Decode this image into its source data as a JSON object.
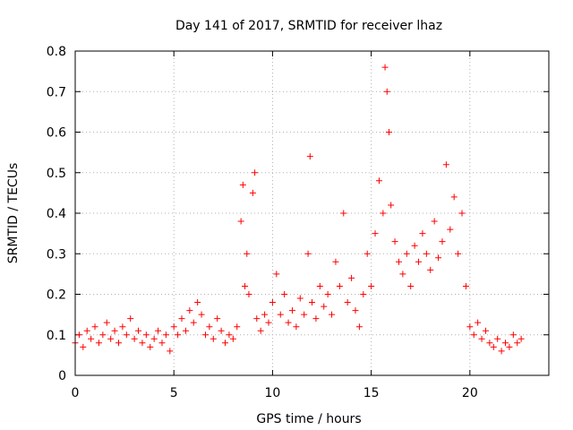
{
  "chart_data": {
    "type": "scatter",
    "title": "Day 141 of 2017, SRMTID for receiver lhaz",
    "xlabel": "GPS time / hours",
    "ylabel": "SRMTID / TECUs",
    "xlim": [
      0,
      24
    ],
    "ylim": [
      0,
      0.8
    ],
    "x_ticks": [
      "0",
      "5",
      "10",
      "15",
      "20"
    ],
    "y_ticks": [
      "0",
      "0.1",
      "0.2",
      "0.3",
      "0.4",
      "0.5",
      "0.6",
      "0.7",
      "0.8"
    ],
    "grid": true,
    "marker": "plus",
    "color": "#ff0000",
    "series": [
      {
        "name": "SRMTID",
        "points": [
          [
            0.0,
            0.08
          ],
          [
            0.2,
            0.1
          ],
          [
            0.4,
            0.07
          ],
          [
            0.6,
            0.11
          ],
          [
            0.8,
            0.09
          ],
          [
            1.0,
            0.12
          ],
          [
            1.2,
            0.08
          ],
          [
            1.4,
            0.1
          ],
          [
            1.6,
            0.13
          ],
          [
            1.8,
            0.09
          ],
          [
            2.0,
            0.11
          ],
          [
            2.2,
            0.08
          ],
          [
            2.4,
            0.12
          ],
          [
            2.6,
            0.1
          ],
          [
            2.8,
            0.14
          ],
          [
            3.0,
            0.09
          ],
          [
            3.2,
            0.11
          ],
          [
            3.4,
            0.08
          ],
          [
            3.6,
            0.1
          ],
          [
            3.8,
            0.07
          ],
          [
            4.0,
            0.09
          ],
          [
            4.2,
            0.11
          ],
          [
            4.4,
            0.08
          ],
          [
            4.6,
            0.1
          ],
          [
            4.8,
            0.06
          ],
          [
            5.0,
            0.12
          ],
          [
            5.2,
            0.1
          ],
          [
            5.4,
            0.14
          ],
          [
            5.6,
            0.11
          ],
          [
            5.8,
            0.16
          ],
          [
            6.0,
            0.13
          ],
          [
            6.2,
            0.18
          ],
          [
            6.4,
            0.15
          ],
          [
            6.6,
            0.1
          ],
          [
            6.8,
            0.12
          ],
          [
            7.0,
            0.09
          ],
          [
            7.2,
            0.14
          ],
          [
            7.4,
            0.11
          ],
          [
            7.6,
            0.08
          ],
          [
            7.8,
            0.1
          ],
          [
            8.0,
            0.09
          ],
          [
            8.2,
            0.12
          ],
          [
            8.4,
            0.38
          ],
          [
            8.5,
            0.47
          ],
          [
            8.6,
            0.22
          ],
          [
            8.7,
            0.3
          ],
          [
            8.8,
            0.2
          ],
          [
            9.0,
            0.45
          ],
          [
            9.1,
            0.5
          ],
          [
            9.2,
            0.14
          ],
          [
            9.4,
            0.11
          ],
          [
            9.6,
            0.15
          ],
          [
            9.8,
            0.13
          ],
          [
            10.0,
            0.18
          ],
          [
            10.2,
            0.25
          ],
          [
            10.4,
            0.15
          ],
          [
            10.6,
            0.2
          ],
          [
            10.8,
            0.13
          ],
          [
            11.0,
            0.16
          ],
          [
            11.2,
            0.12
          ],
          [
            11.4,
            0.19
          ],
          [
            11.6,
            0.15
          ],
          [
            11.8,
            0.3
          ],
          [
            11.9,
            0.54
          ],
          [
            12.0,
            0.18
          ],
          [
            12.2,
            0.14
          ],
          [
            12.4,
            0.22
          ],
          [
            12.6,
            0.17
          ],
          [
            12.8,
            0.2
          ],
          [
            13.0,
            0.15
          ],
          [
            13.2,
            0.28
          ],
          [
            13.4,
            0.22
          ],
          [
            13.6,
            0.4
          ],
          [
            13.8,
            0.18
          ],
          [
            14.0,
            0.24
          ],
          [
            14.2,
            0.16
          ],
          [
            14.4,
            0.12
          ],
          [
            14.6,
            0.2
          ],
          [
            14.8,
            0.3
          ],
          [
            15.0,
            0.22
          ],
          [
            15.2,
            0.35
          ],
          [
            15.4,
            0.48
          ],
          [
            15.6,
            0.4
          ],
          [
            15.7,
            0.76
          ],
          [
            15.8,
            0.7
          ],
          [
            15.9,
            0.6
          ],
          [
            16.0,
            0.42
          ],
          [
            16.2,
            0.33
          ],
          [
            16.4,
            0.28
          ],
          [
            16.6,
            0.25
          ],
          [
            16.8,
            0.3
          ],
          [
            17.0,
            0.22
          ],
          [
            17.2,
            0.32
          ],
          [
            17.4,
            0.28
          ],
          [
            17.6,
            0.35
          ],
          [
            17.8,
            0.3
          ],
          [
            18.0,
            0.26
          ],
          [
            18.2,
            0.38
          ],
          [
            18.4,
            0.29
          ],
          [
            18.6,
            0.33
          ],
          [
            18.8,
            0.52
          ],
          [
            19.0,
            0.36
          ],
          [
            19.2,
            0.44
          ],
          [
            19.4,
            0.3
          ],
          [
            19.6,
            0.4
          ],
          [
            19.8,
            0.22
          ],
          [
            20.0,
            0.12
          ],
          [
            20.2,
            0.1
          ],
          [
            20.4,
            0.13
          ],
          [
            20.6,
            0.09
          ],
          [
            20.8,
            0.11
          ],
          [
            21.0,
            0.08
          ],
          [
            21.2,
            0.07
          ],
          [
            21.4,
            0.09
          ],
          [
            21.6,
            0.06
          ],
          [
            21.8,
            0.08
          ],
          [
            22.0,
            0.07
          ],
          [
            22.2,
            0.1
          ],
          [
            22.4,
            0.08
          ],
          [
            22.6,
            0.09
          ]
        ]
      }
    ]
  }
}
